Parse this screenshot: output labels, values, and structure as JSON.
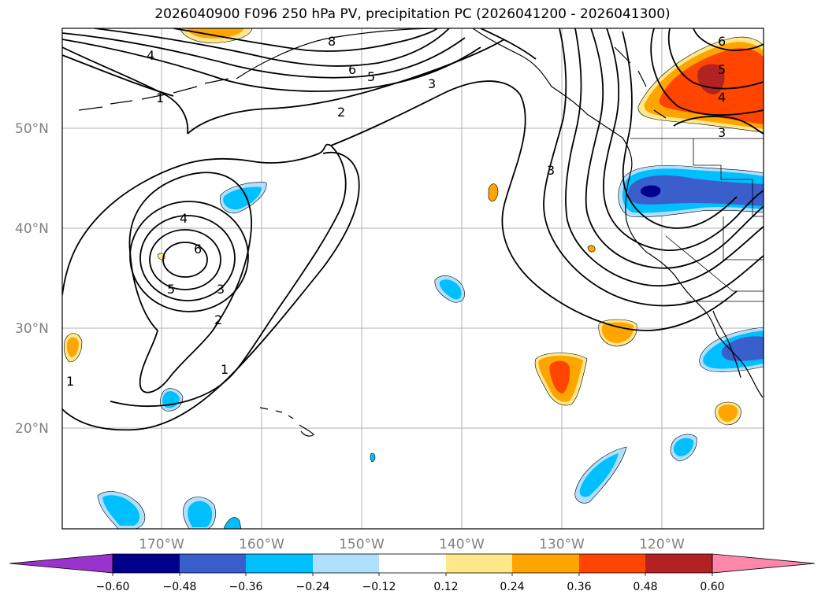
{
  "title": "2026040900 F096 250 hPa PV, precipitation PC (2026041200 - 2026041300)",
  "map": {
    "lon_labels": [
      "170°W",
      "160°W",
      "150°W",
      "140°W",
      "130°W",
      "120°W"
    ],
    "lat_labels": [
      "50°N",
      "40°N",
      "30°N",
      "20°N"
    ],
    "pv_contour_labels": [
      "8",
      "4",
      "1",
      "6",
      "5",
      "3",
      "2",
      "4",
      "6",
      "5",
      "3",
      "2",
      "1",
      "1",
      "3",
      "6",
      "5",
      "4",
      "3"
    ]
  },
  "colorbar": {
    "tick_labels": [
      "−0.60",
      "−0.48",
      "−0.36",
      "−0.24",
      "−0.12",
      "0.12",
      "0.24",
      "0.36",
      "0.48",
      "0.60"
    ],
    "colors": {
      "lt_neg060": "#9933cc",
      "neg060_neg048": "#00008b",
      "neg048_neg036": "#3a5fcd",
      "neg036_neg024": "#00bfff",
      "neg024_neg012": "#b0e0ff",
      "neg012_012": "#ffffff",
      "012_024": "#ffe88c",
      "024_036": "#ffa500",
      "036_048": "#ff4500",
      "048_060": "#b22222",
      "gt_060": "#ff88aa"
    }
  }
}
